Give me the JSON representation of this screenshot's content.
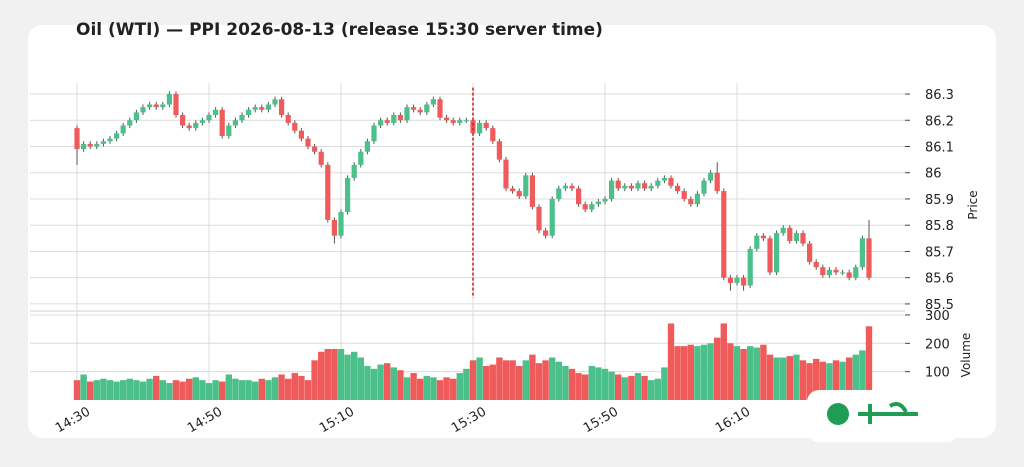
{
  "chart_data": {
    "type": "candlestick",
    "title": "Oil (WTI) — PPI 2026-08-13 (release 15:30 server time)",
    "y_label": "Price",
    "volume_label": "Volume",
    "up_color": "#4cc08a",
    "down_color": "#ef5b5b",
    "marker": {
      "at": "15:30",
      "color": "#c62828"
    },
    "categories": [
      "14:30",
      null,
      null,
      null,
      null,
      null,
      null,
      null,
      null,
      null,
      null,
      null,
      null,
      null,
      null,
      null,
      null,
      null,
      null,
      null,
      "14:50",
      null,
      null,
      null,
      null,
      null,
      null,
      null,
      null,
      null,
      null,
      null,
      null,
      null,
      null,
      null,
      null,
      null,
      null,
      null,
      "15:10",
      null,
      null,
      null,
      null,
      null,
      null,
      null,
      null,
      null,
      null,
      null,
      null,
      null,
      null,
      null,
      null,
      null,
      null,
      null,
      "15:30",
      null,
      null,
      null,
      null,
      null,
      null,
      null,
      null,
      null,
      null,
      null,
      null,
      null,
      null,
      null,
      null,
      null,
      null,
      null,
      "15:50",
      null,
      null,
      null,
      null,
      null,
      null,
      null,
      null,
      null,
      null,
      null,
      null,
      null,
      null,
      null,
      null,
      null,
      null,
      null,
      "16:10",
      null,
      null,
      null,
      null,
      null,
      null,
      null,
      null,
      null,
      null,
      null,
      null,
      null,
      null,
      null,
      null,
      null,
      null,
      null,
      null
    ],
    "open": [
      86.17,
      86.09,
      86.11,
      86.1,
      86.11,
      86.12,
      86.13,
      86.15,
      86.18,
      86.2,
      86.23,
      86.25,
      86.26,
      86.25,
      86.26,
      86.3,
      86.22,
      86.18,
      86.17,
      86.19,
      86.2,
      86.22,
      86.24,
      86.14,
      86.18,
      86.2,
      86.22,
      86.24,
      86.25,
      86.24,
      86.26,
      86.28,
      86.22,
      86.19,
      86.16,
      86.13,
      86.1,
      86.08,
      86.03,
      85.82,
      85.76,
      85.85,
      85.98,
      86.03,
      86.08,
      86.12,
      86.18,
      86.2,
      86.19,
      86.22,
      86.2,
      86.25,
      86.24,
      86.23,
      86.26,
      86.28,
      86.21,
      86.2,
      86.19,
      86.2,
      86.2,
      86.15,
      86.19,
      86.17,
      86.12,
      86.05,
      85.94,
      85.93,
      85.91,
      85.99,
      85.87,
      85.78,
      85.76,
      85.9,
      85.94,
      85.95,
      85.94,
      85.88,
      85.86,
      85.88,
      85.89,
      85.9,
      85.97,
      85.94,
      85.95,
      85.94,
      85.96,
      85.94,
      85.95,
      85.97,
      85.98,
      85.95,
      85.93,
      85.9,
      85.88,
      85.92,
      85.97,
      86.0,
      85.93,
      85.6,
      85.58,
      85.6,
      85.57,
      85.71,
      85.76,
      85.75,
      85.62,
      85.77,
      85.79,
      85.74,
      85.77,
      85.73,
      85.66,
      85.64,
      85.61,
      85.63,
      85.62,
      85.62,
      85.6,
      85.64,
      85.75
    ],
    "high": [
      86.18,
      86.12,
      86.12,
      86.12,
      86.13,
      86.14,
      86.16,
      86.19,
      86.21,
      86.24,
      86.26,
      86.27,
      86.27,
      86.27,
      86.31,
      86.31,
      86.23,
      86.19,
      86.2,
      86.21,
      86.23,
      86.25,
      86.25,
      86.19,
      86.21,
      86.23,
      86.25,
      86.26,
      86.26,
      86.27,
      86.29,
      86.29,
      86.23,
      86.2,
      86.17,
      86.14,
      86.11,
      86.09,
      86.04,
      85.83,
      85.86,
      85.99,
      86.04,
      86.09,
      86.13,
      86.19,
      86.21,
      86.21,
      86.23,
      86.23,
      86.26,
      86.26,
      86.25,
      86.27,
      86.29,
      86.29,
      86.22,
      86.21,
      86.21,
      86.21,
      86.21,
      86.2,
      86.2,
      86.18,
      86.13,
      86.06,
      85.95,
      85.94,
      86.0,
      86.0,
      85.88,
      85.79,
      85.91,
      85.95,
      85.96,
      85.96,
      85.95,
      85.89,
      85.89,
      85.9,
      85.91,
      85.98,
      85.98,
      85.96,
      85.96,
      85.97,
      85.97,
      85.96,
      85.98,
      85.99,
      85.99,
      85.96,
      85.94,
      85.91,
      85.93,
      85.98,
      86.01,
      86.04,
      85.94,
      85.61,
      85.61,
      85.61,
      85.72,
      85.77,
      85.77,
      85.76,
      85.78,
      85.8,
      85.8,
      85.78,
      85.78,
      85.74,
      85.67,
      85.65,
      85.64,
      85.64,
      85.63,
      85.63,
      85.65,
      85.76,
      85.82
    ],
    "low": [
      86.03,
      86.08,
      86.09,
      86.09,
      86.1,
      86.11,
      86.12,
      86.14,
      86.17,
      86.19,
      86.22,
      86.24,
      86.24,
      86.24,
      86.25,
      86.21,
      86.17,
      86.16,
      86.16,
      86.18,
      86.19,
      86.21,
      86.13,
      86.13,
      86.17,
      86.19,
      86.21,
      86.23,
      86.23,
      86.23,
      86.25,
      86.21,
      86.18,
      86.15,
      86.12,
      86.09,
      86.07,
      86.02,
      85.81,
      85.73,
      85.75,
      85.84,
      85.97,
      86.02,
      86.07,
      86.11,
      86.17,
      86.18,
      86.18,
      86.19,
      86.19,
      86.23,
      86.22,
      86.22,
      86.25,
      86.2,
      86.19,
      86.18,
      86.18,
      86.19,
      86.14,
      86.14,
      86.16,
      86.11,
      86.04,
      85.93,
      85.92,
      85.9,
      85.9,
      85.86,
      85.77,
      85.75,
      85.75,
      85.89,
      85.93,
      85.93,
      85.87,
      85.85,
      85.85,
      85.87,
      85.88,
      85.89,
      85.93,
      85.93,
      85.93,
      85.93,
      85.93,
      85.93,
      85.94,
      85.96,
      85.94,
      85.92,
      85.89,
      85.87,
      85.87,
      85.91,
      85.96,
      85.92,
      85.59,
      85.55,
      85.57,
      85.55,
      85.56,
      85.7,
      85.74,
      85.61,
      85.61,
      85.76,
      85.73,
      85.73,
      85.72,
      85.65,
      85.63,
      85.6,
      85.6,
      85.61,
      85.61,
      85.59,
      85.59,
      85.63,
      85.59
    ],
    "close": [
      86.09,
      86.11,
      86.1,
      86.11,
      86.12,
      86.13,
      86.15,
      86.18,
      86.2,
      86.23,
      86.25,
      86.26,
      86.25,
      86.26,
      86.3,
      86.22,
      86.18,
      86.17,
      86.19,
      86.2,
      86.22,
      86.24,
      86.14,
      86.18,
      86.2,
      86.22,
      86.24,
      86.25,
      86.24,
      86.26,
      86.28,
      86.22,
      86.19,
      86.16,
      86.13,
      86.1,
      86.08,
      86.03,
      85.82,
      85.76,
      85.85,
      85.98,
      86.03,
      86.08,
      86.12,
      86.18,
      86.2,
      86.19,
      86.22,
      86.2,
      86.25,
      86.24,
      86.23,
      86.26,
      86.28,
      86.21,
      86.2,
      86.19,
      86.2,
      86.2,
      86.15,
      86.19,
      86.17,
      86.12,
      86.05,
      85.94,
      85.93,
      85.91,
      85.99,
      85.87,
      85.78,
      85.76,
      85.9,
      85.94,
      85.95,
      85.94,
      85.88,
      85.86,
      85.88,
      85.89,
      85.9,
      85.97,
      85.94,
      85.95,
      85.94,
      85.96,
      85.94,
      85.95,
      85.97,
      85.98,
      85.95,
      85.93,
      85.9,
      85.88,
      85.92,
      85.97,
      86.0,
      85.93,
      85.6,
      85.58,
      85.6,
      85.57,
      85.71,
      85.76,
      85.75,
      85.62,
      85.77,
      85.79,
      85.74,
      85.77,
      85.73,
      85.66,
      85.64,
      85.61,
      85.63,
      85.62,
      85.62,
      85.6,
      85.64,
      85.75,
      85.6
    ],
    "volume": [
      70,
      90,
      65,
      70,
      75,
      70,
      65,
      70,
      75,
      70,
      65,
      75,
      85,
      70,
      60,
      70,
      65,
      75,
      80,
      70,
      60,
      70,
      65,
      90,
      75,
      70,
      70,
      65,
      75,
      70,
      80,
      90,
      75,
      95,
      85,
      70,
      140,
      170,
      180,
      180,
      180,
      160,
      170,
      150,
      120,
      110,
      125,
      130,
      115,
      105,
      80,
      95,
      75,
      85,
      80,
      70,
      80,
      75,
      95,
      110,
      140,
      150,
      120,
      125,
      150,
      140,
      140,
      120,
      140,
      160,
      130,
      140,
      150,
      135,
      120,
      110,
      95,
      90,
      120,
      115,
      110,
      100,
      90,
      80,
      85,
      95,
      85,
      70,
      75,
      115,
      270,
      190,
      190,
      195,
      190,
      195,
      200,
      220,
      270,
      200,
      190,
      180,
      190,
      185,
      195,
      160,
      150,
      150,
      155,
      160,
      140,
      130,
      145,
      135,
      130,
      140,
      135,
      150,
      160,
      175,
      260
    ],
    "ylim": [
      85.473,
      86.342
    ],
    "yticks": [
      85.5,
      85.6,
      85.7,
      85.8,
      85.9,
      86.0,
      86.1,
      86.2,
      86.3
    ],
    "volume_ylim": [
      0,
      314
    ],
    "volume_yticks": [
      100,
      200,
      300
    ],
    "grid": true
  }
}
